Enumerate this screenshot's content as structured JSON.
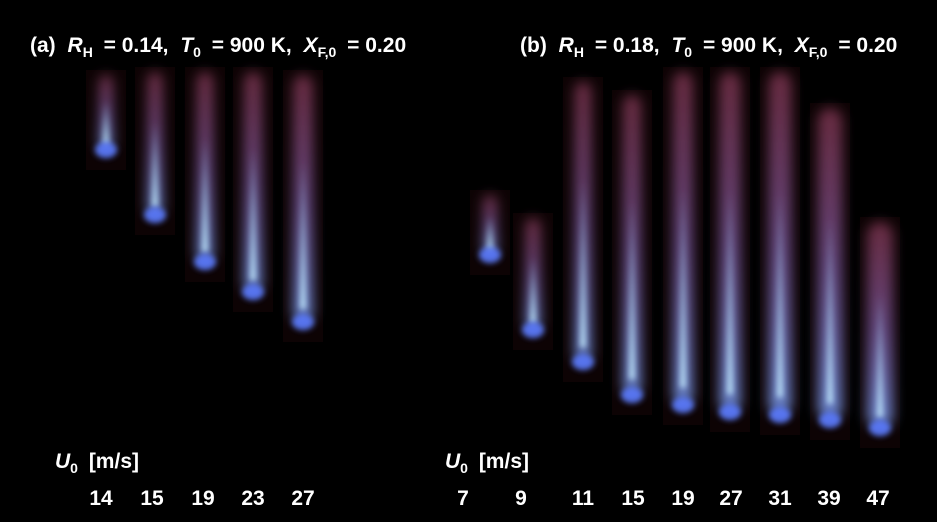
{
  "panels": [
    {
      "label": "(a)",
      "r_symbol": "R",
      "r_sub": "H",
      "r_value": "= 0.14,",
      "t_symbol": "T",
      "t_sub": "0",
      "t_value": "= 900 K,",
      "x_symbol": "X",
      "x_sub": "F,0",
      "x_value": "= 0.20",
      "velocity_symbol": "U",
      "velocity_sub": "0",
      "velocity_unit": "[m/s]",
      "velocities": [
        14,
        15,
        19,
        23,
        27
      ]
    },
    {
      "label": "(b)",
      "r_symbol": "R",
      "r_sub": "H",
      "r_value": "= 0.18,",
      "t_symbol": "T",
      "t_sub": "0",
      "t_value": "= 900 K,",
      "x_symbol": "X",
      "x_sub": "F,0",
      "x_value": "= 0.20",
      "velocity_symbol": "U",
      "velocity_sub": "0",
      "velocity_unit": "[m/s]",
      "velocities": [
        7,
        9,
        11,
        15,
        19,
        27,
        31,
        39,
        47
      ]
    }
  ]
}
